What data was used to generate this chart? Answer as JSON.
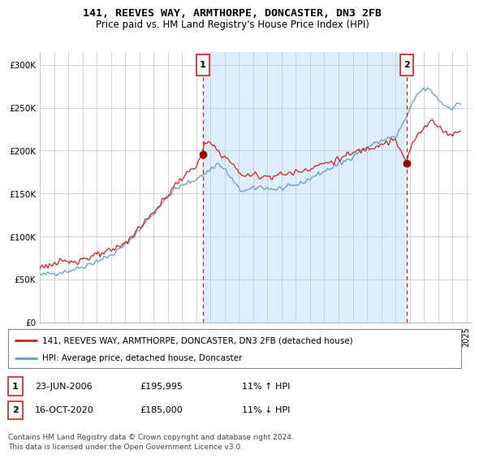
{
  "title": "141, REEVES WAY, ARMTHORPE, DONCASTER, DN3 2FB",
  "subtitle": "Price paid vs. HM Land Registry's House Price Index (HPI)",
  "ylim": [
    0,
    315000
  ],
  "yticks": [
    0,
    50000,
    100000,
    150000,
    200000,
    250000,
    300000
  ],
  "ytick_labels": [
    "£0",
    "£50K",
    "£100K",
    "£150K",
    "£200K",
    "£250K",
    "£300K"
  ],
  "bg_color": "#ffffff",
  "plot_bg_color": "#ffffff",
  "shade_color": "#ddeeff",
  "grid_color": "#cccccc",
  "line1_color": "#cc2222",
  "line2_color": "#6699cc",
  "marker1_x": 2006.47,
  "marker1_price": 195995,
  "marker2_x": 2020.79,
  "marker2_price": 185000,
  "legend_label1": "141, REEVES WAY, ARMTHORPE, DONCASTER, DN3 2FB (detached house)",
  "legend_label2": "HPI: Average price, detached house, Doncaster",
  "footnote": "Contains HM Land Registry data © Crown copyright and database right 2024.\nThis data is licensed under the Open Government Licence v3.0.",
  "table_row1": [
    "1",
    "23-JUN-2006",
    "£195,995",
    "11% ↑ HPI"
  ],
  "table_row2": [
    "2",
    "16-OCT-2020",
    "£185,000",
    "11% ↓ HPI"
  ],
  "xlim_start": 1995.0,
  "xlim_end": 2025.3
}
